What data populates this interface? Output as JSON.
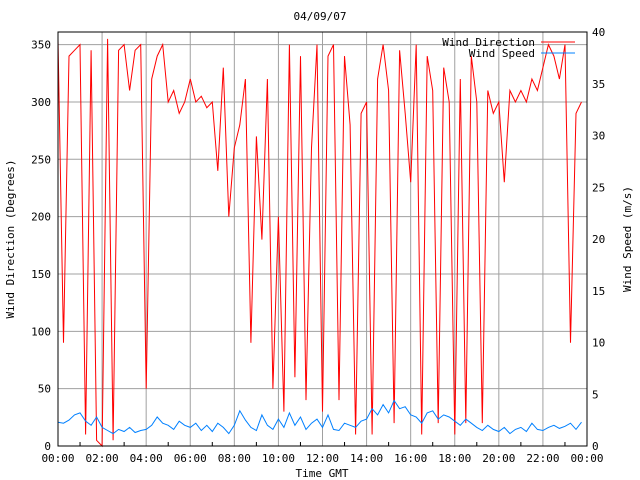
{
  "chart_data": {
    "type": "line",
    "title": "04/09/07",
    "xlabel": "Time GMT",
    "ylabel": "Wind Direction (Degrees)",
    "y2label": "Wind Speed (m/s)",
    "x_ticks": [
      "00:00",
      "02:00",
      "04:00",
      "06:00",
      "08:00",
      "10:00",
      "12:00",
      "14:00",
      "16:00",
      "18:00",
      "20:00",
      "22:00",
      "00:00"
    ],
    "xlim_hours": [
      0,
      24
    ],
    "ylim": [
      0,
      361
    ],
    "y_ticks": [
      0,
      50,
      100,
      150,
      200,
      250,
      300,
      350
    ],
    "y2lim": [
      0,
      40
    ],
    "y2_ticks": [
      0,
      5,
      10,
      15,
      20,
      25,
      30,
      35,
      40
    ],
    "grid": true,
    "legend_position": "top-right",
    "sample_interval_hours": 0.25,
    "series": [
      {
        "name": "Wind Direction",
        "axis": "left",
        "color": "#ff0000",
        "values": [
          355,
          90,
          340,
          345,
          350,
          10,
          345,
          5,
          0,
          355,
          5,
          345,
          350,
          310,
          345,
          350,
          50,
          320,
          340,
          350,
          300,
          310,
          290,
          300,
          320,
          300,
          305,
          295,
          300,
          240,
          330,
          200,
          260,
          280,
          320,
          90,
          270,
          180,
          320,
          50,
          200,
          30,
          350,
          60,
          340,
          40,
          260,
          350,
          30,
          340,
          350,
          40,
          340,
          280,
          10,
          290,
          300,
          10,
          320,
          350,
          310,
          20,
          345,
          290,
          230,
          350,
          10,
          340,
          310,
          20,
          330,
          300,
          10,
          320,
          20,
          340,
          300,
          20,
          310,
          290,
          300,
          230,
          310,
          300,
          310,
          300,
          320,
          310,
          330,
          350,
          340,
          320,
          350,
          90,
          290,
          300
        ]
      },
      {
        "name": "Wind Speed",
        "axis": "right",
        "color": "#0080ff",
        "values": [
          2.3,
          2.2,
          2.5,
          3.0,
          3.2,
          2.4,
          2.0,
          2.8,
          1.8,
          1.5,
          1.2,
          1.6,
          1.4,
          1.8,
          1.3,
          1.5,
          1.6,
          2.0,
          2.8,
          2.2,
          2.0,
          1.6,
          2.4,
          2.0,
          1.8,
          2.2,
          1.5,
          2.0,
          1.4,
          2.2,
          1.8,
          1.2,
          2.0,
          3.4,
          2.5,
          1.8,
          1.5,
          3.0,
          2.0,
          1.6,
          2.6,
          1.8,
          3.2,
          2.0,
          2.8,
          1.6,
          2.2,
          2.6,
          1.8,
          3.0,
          1.6,
          1.5,
          2.2,
          2.0,
          1.8,
          2.4,
          2.6,
          3.6,
          3.0,
          4.0,
          3.2,
          4.4,
          3.6,
          3.8,
          3.0,
          2.8,
          2.2,
          3.2,
          3.4,
          2.6,
          3.0,
          2.8,
          2.4,
          2.0,
          2.6,
          2.2,
          1.8,
          1.5,
          2.0,
          1.6,
          1.4,
          1.8,
          1.2,
          1.6,
          1.8,
          1.4,
          2.2,
          1.6,
          1.5,
          1.8,
          2.0,
          1.7,
          1.9,
          2.2,
          1.6,
          2.3
        ]
      }
    ]
  }
}
